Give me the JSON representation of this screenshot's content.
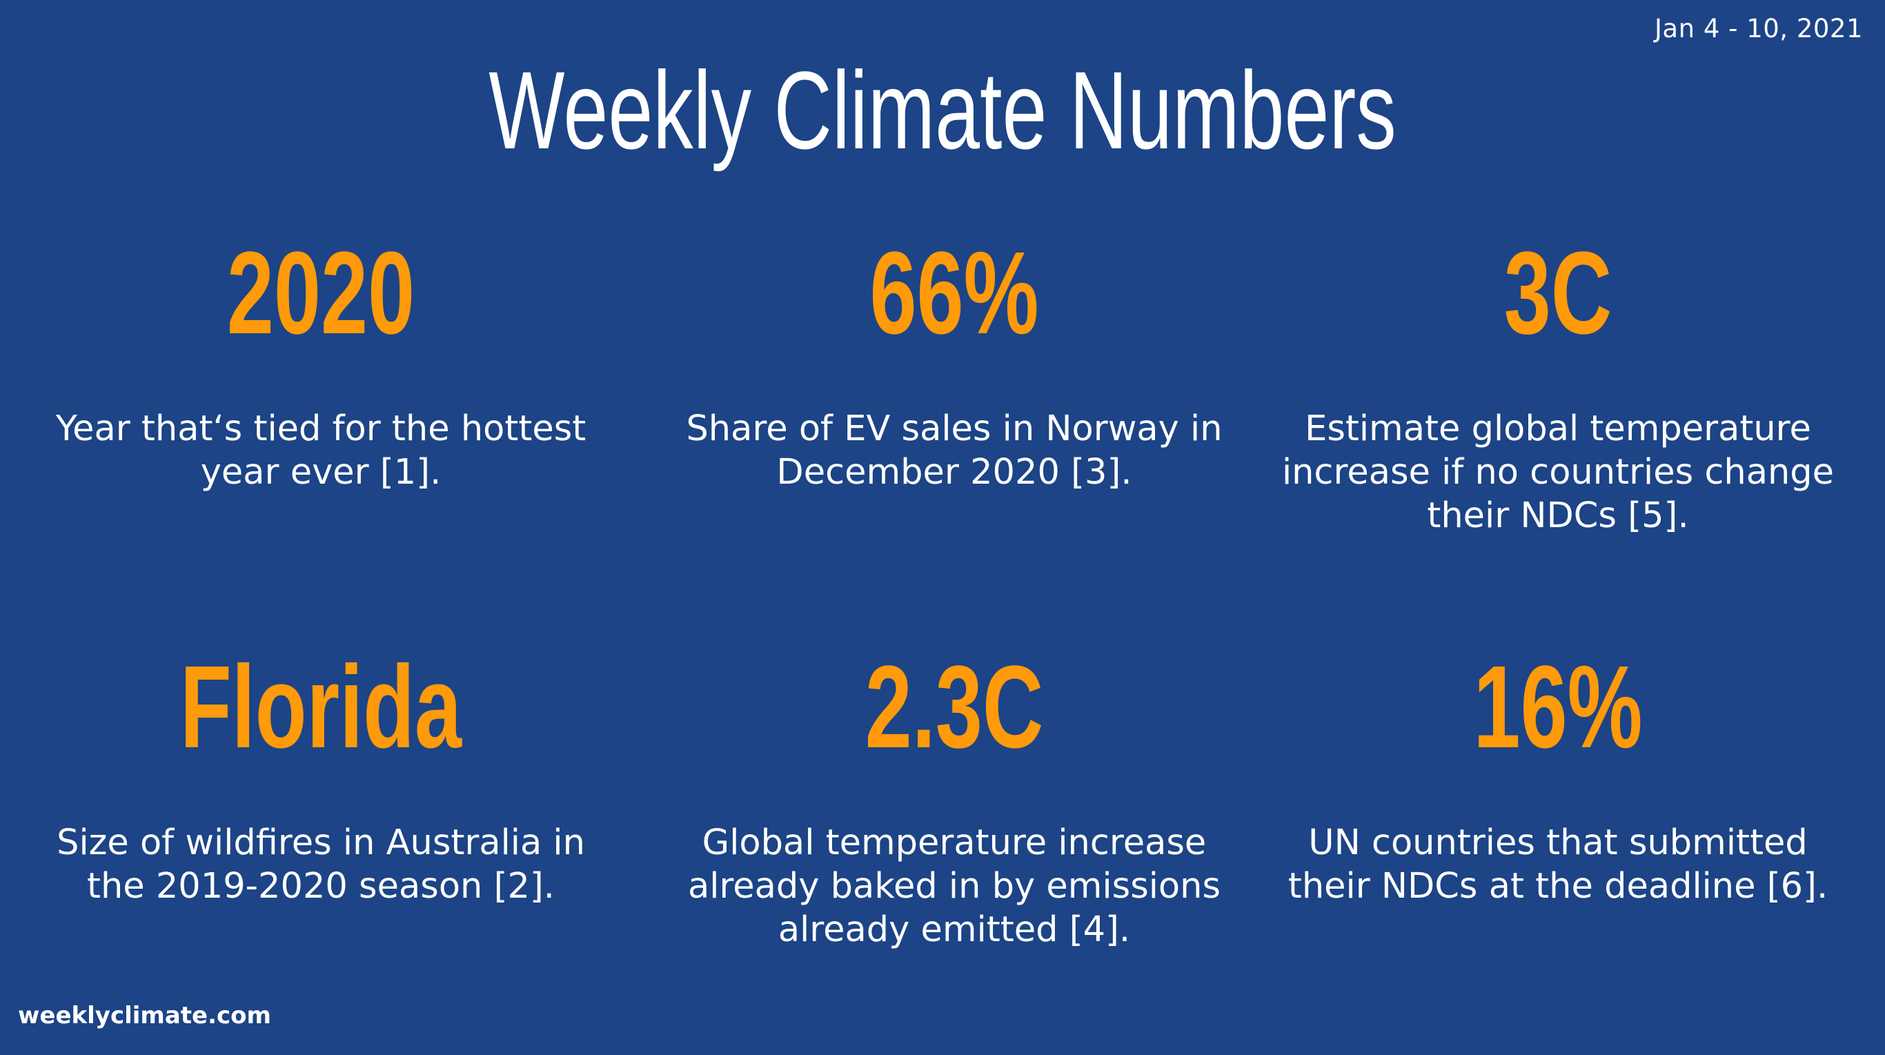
{
  "header": {
    "date_range": "Jan 4 - 10, 2021",
    "title": "Weekly Climate Numbers"
  },
  "cards": [
    {
      "stat": "2020",
      "description": "Year that‘s tied for the hottest year ever [1]."
    },
    {
      "stat": "66%",
      "description": "Share of EV sales in Norway in December 2020 [3]."
    },
    {
      "stat": "3C",
      "description": "Estimate global temperature increase if no countries change their NDCs [5]."
    },
    {
      "stat": "Florida",
      "description": "Size of wildfires in Australia in the  2019-2020 season [2]."
    },
    {
      "stat": "2.3C",
      "description": "Global temperature increase already baked in by emissions already emitted [4]."
    },
    {
      "stat": "16%",
      "description": "UN countries that submitted their NDCs at the deadline [6]."
    }
  ],
  "footer": {
    "site": "weeklyclimate.com"
  },
  "colors": {
    "background": "#1c4486",
    "stat": "#ff9a0a",
    "text": "#ffffff"
  }
}
